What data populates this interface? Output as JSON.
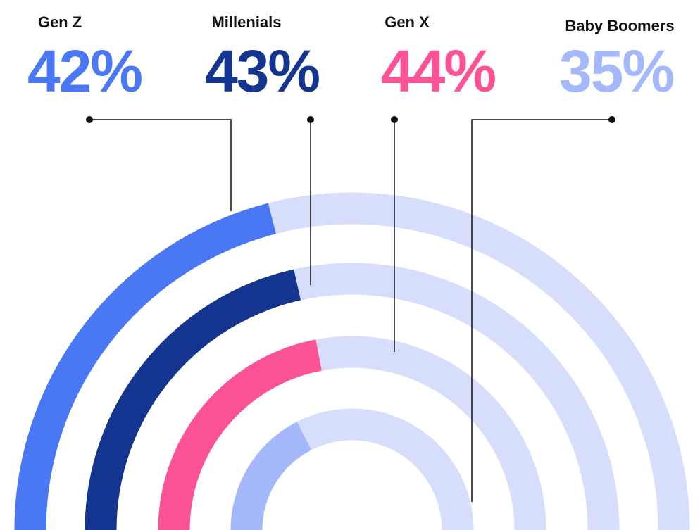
{
  "chart_data": {
    "type": "radial_bar",
    "categories": [
      "Gen Z",
      "Millenials",
      "Gen X",
      "Baby Boomers"
    ],
    "values": [
      42,
      43,
      44,
      35
    ],
    "value_labels": [
      "42%",
      "43%",
      "44%",
      "35%"
    ],
    "colors": [
      "#4a78f5",
      "#14358f",
      "#fc5296",
      "#a5b8fc"
    ],
    "track_color": "#d6defc",
    "ylim": [
      0,
      100
    ]
  }
}
